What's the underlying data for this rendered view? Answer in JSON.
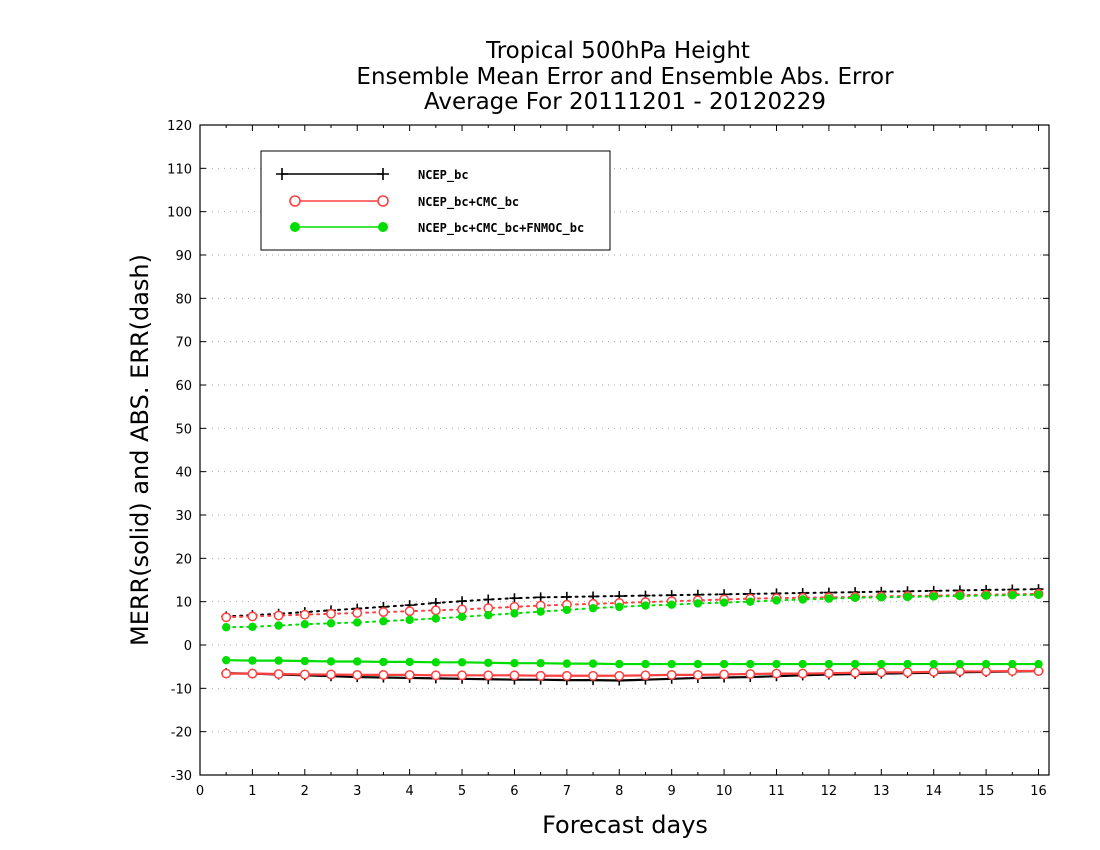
{
  "chart_data": {
    "type": "line",
    "title": [
      "Tropical 500hPa Height",
      "Ensemble Mean Error and Ensemble Abs. Error",
      "Average For 20111201 - 20120229"
    ],
    "xlabel": "Forecast days",
    "ylabel": "MERR(solid) and ABS. ERR(dash)",
    "xlim": [
      0,
      16.2
    ],
    "ylim": [
      -30,
      120
    ],
    "x_ticks": [
      0,
      1,
      2,
      3,
      4,
      5,
      6,
      7,
      8,
      9,
      10,
      11,
      12,
      13,
      14,
      15,
      16
    ],
    "y_ticks": [
      -30,
      -20,
      -10,
      0,
      10,
      20,
      30,
      40,
      50,
      60,
      70,
      80,
      90,
      100,
      110,
      120
    ],
    "y_tick_labels": [
      "-30",
      "-20",
      "-10",
      "0",
      "10",
      "20",
      "30",
      "40",
      "50",
      "60",
      "70",
      "80",
      "90",
      "100",
      "110",
      "120"
    ],
    "grid": "horizontal dotted",
    "legend_position": "top-left",
    "x": [
      0.5,
      1,
      1.5,
      2,
      2.5,
      3,
      3.5,
      4,
      4.5,
      5,
      5.5,
      6,
      6.5,
      7,
      7.5,
      8,
      8.5,
      9,
      9.5,
      10,
      10.5,
      11,
      11.5,
      12,
      12.5,
      13,
      13.5,
      14,
      14.5,
      15,
      15.5,
      16
    ],
    "series": [
      {
        "name": "NCEP_bc",
        "color": "#000000",
        "marker": "plus",
        "merr": [
          -6.5,
          -6.6,
          -6.8,
          -7.0,
          -7.2,
          -7.4,
          -7.5,
          -7.6,
          -7.7,
          -7.8,
          -7.9,
          -8.0,
          -8.0,
          -8.1,
          -8.1,
          -8.2,
          -8.0,
          -7.8,
          -7.6,
          -7.5,
          -7.4,
          -7.2,
          -7.0,
          -6.8,
          -6.7,
          -6.6,
          -6.5,
          -6.4,
          -6.3,
          -6.2,
          -6.1,
          -6.0
        ],
        "abs_err": [
          6.6,
          6.9,
          7.2,
          7.6,
          8.0,
          8.4,
          8.8,
          9.2,
          9.7,
          10.1,
          10.5,
          10.8,
          11.0,
          11.1,
          11.2,
          11.3,
          11.4,
          11.5,
          11.6,
          11.7,
          11.8,
          11.9,
          12.0,
          12.1,
          12.2,
          12.3,
          12.4,
          12.5,
          12.6,
          12.7,
          12.8,
          12.9
        ]
      },
      {
        "name": "NCEP_bc+CMC_bc",
        "color": "#ff4040",
        "marker": "open-circle",
        "merr": [
          -6.6,
          -6.6,
          -6.7,
          -6.8,
          -6.8,
          -6.9,
          -6.9,
          -6.9,
          -7.0,
          -7.0,
          -7.0,
          -7.0,
          -7.1,
          -7.1,
          -7.1,
          -7.1,
          -7.0,
          -6.9,
          -6.9,
          -6.8,
          -6.7,
          -6.6,
          -6.6,
          -6.5,
          -6.4,
          -6.3,
          -6.3,
          -6.2,
          -6.1,
          -6.1,
          -6.0,
          -6.0
        ],
        "abs_err": [
          6.4,
          6.6,
          6.8,
          7.0,
          7.2,
          7.4,
          7.6,
          7.8,
          8.0,
          8.2,
          8.5,
          8.8,
          9.1,
          9.3,
          9.5,
          9.7,
          9.9,
          10.1,
          10.3,
          10.5,
          10.7,
          10.8,
          10.9,
          11.0,
          11.1,
          11.2,
          11.3,
          11.4,
          11.5,
          11.6,
          11.7,
          11.8
        ]
      },
      {
        "name": "NCEP_bc+CMC_bc+FNMOC_bc",
        "color": "#00dd00",
        "marker": "filled-circle",
        "merr": [
          -3.5,
          -3.6,
          -3.6,
          -3.7,
          -3.8,
          -3.8,
          -3.9,
          -3.9,
          -4.0,
          -4.0,
          -4.1,
          -4.2,
          -4.2,
          -4.3,
          -4.3,
          -4.4,
          -4.4,
          -4.4,
          -4.4,
          -4.4,
          -4.4,
          -4.4,
          -4.4,
          -4.4,
          -4.4,
          -4.4,
          -4.4,
          -4.4,
          -4.4,
          -4.4,
          -4.4,
          -4.4
        ],
        "abs_err": [
          4.1,
          4.2,
          4.5,
          4.8,
          5.0,
          5.2,
          5.5,
          5.8,
          6.1,
          6.5,
          6.9,
          7.3,
          7.7,
          8.1,
          8.5,
          8.8,
          9.1,
          9.3,
          9.6,
          9.8,
          10.0,
          10.3,
          10.5,
          10.7,
          10.9,
          11.0,
          11.1,
          11.2,
          11.3,
          11.4,
          11.5,
          11.6
        ]
      }
    ]
  }
}
